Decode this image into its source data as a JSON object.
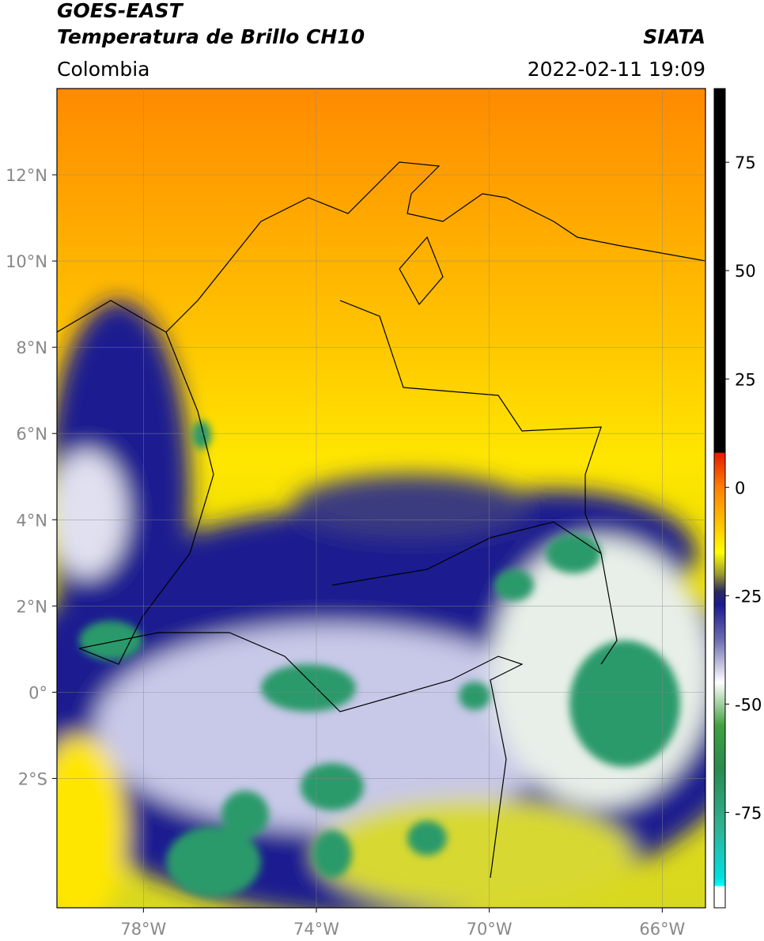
{
  "header": {
    "title": "GOES-EAST",
    "subtitle": "Temperatura de Brillo CH10",
    "region": "Colombia",
    "source": "SIATA",
    "datetime": "2022-02-11 19:09"
  },
  "map": {
    "lon_range": [
      -80,
      -65
    ],
    "lat_range": [
      -5,
      14
    ],
    "lon_ticks": [
      {
        "value": -78,
        "label": "78°W"
      },
      {
        "value": -74,
        "label": "74°W"
      },
      {
        "value": -70,
        "label": "70°W"
      },
      {
        "value": -66,
        "label": "66°W"
      }
    ],
    "lat_ticks": [
      {
        "value": 12,
        "label": "12°N"
      },
      {
        "value": 10,
        "label": "10°N"
      },
      {
        "value": 8,
        "label": "8°N"
      },
      {
        "value": 6,
        "label": "6°N"
      },
      {
        "value": 4,
        "label": "4°N"
      },
      {
        "value": 2,
        "label": "2°N"
      },
      {
        "value": 0,
        "label": "0°"
      },
      {
        "value": -2,
        "label": "2°S"
      }
    ],
    "grid": true
  },
  "colorbar": {
    "range": [
      -97,
      92
    ],
    "ticks": [
      75,
      50,
      25,
      0,
      -25,
      -50,
      -75
    ],
    "stops": [
      [
        92,
        "#000000"
      ],
      [
        8,
        "#000000"
      ],
      [
        8,
        "#e61a00"
      ],
      [
        0,
        "#ff8000"
      ],
      [
        -10,
        "#ffd000"
      ],
      [
        -15,
        "#ffff00"
      ],
      [
        -20,
        "#9a9a30"
      ],
      [
        -24,
        "#2a2a60"
      ],
      [
        -27,
        "#1a1a90"
      ],
      [
        -35,
        "#6a6ab0"
      ],
      [
        -45,
        "#ffffff"
      ],
      [
        -55,
        "#40a040"
      ],
      [
        -65,
        "#2a8a50"
      ],
      [
        -78,
        "#30b090"
      ],
      [
        -90,
        "#00e0e0"
      ],
      [
        -92,
        "#00ffff"
      ],
      [
        -92,
        "#ffffff"
      ],
      [
        -97,
        "#ffffff"
      ]
    ]
  }
}
